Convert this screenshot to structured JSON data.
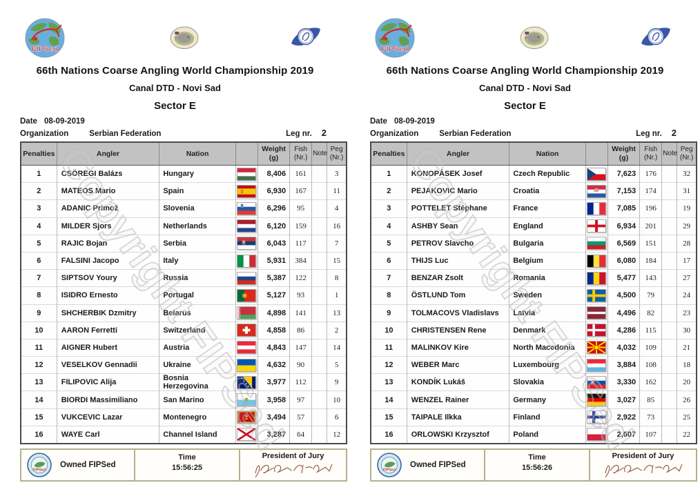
{
  "watermark": "Copyright FIPSed",
  "colors": {
    "header_bg": "#c2c2c2",
    "footer_border": "#b3b08c",
    "watermark_gray": "#b9b9b9",
    "signature_ink": "#9c5f4a",
    "fipsed_red": "#cc2222"
  },
  "logos": {
    "fipsed_label": "FIPSed"
  },
  "pages": [
    {
      "title": "66th Nations Coarse Angling World Championship 2019",
      "subtitle": "Canal DTD - Novi Sad",
      "sector": "Sector E",
      "date_label": "Date",
      "date_value": "08-09-2019",
      "org_label": "Organization",
      "org_value": "Serbian Federation",
      "leg_label": "Leg nr.",
      "leg_value": "2",
      "columns": [
        {
          "label": "Penalties",
          "sub": ""
        },
        {
          "label": "Angler",
          "sub": ""
        },
        {
          "label": "Nation",
          "sub": ""
        },
        {
          "label": "",
          "sub": ""
        },
        {
          "label": "Weight",
          "sub": "(g)"
        },
        {
          "label": "Fish",
          "sub": "(Nr.)"
        },
        {
          "label": "Note",
          "sub": ""
        },
        {
          "label": "Peg",
          "sub": "(Nr.)"
        }
      ],
      "rows": [
        {
          "rank": "1",
          "angler": "CSÖREGI Balázs",
          "nation": "Hungary",
          "flag": "hu",
          "weight": "8,406",
          "fish": "161",
          "note": "",
          "peg": "3"
        },
        {
          "rank": "2",
          "angler": "MATEOS Mario",
          "nation": "Spain",
          "flag": "es",
          "weight": "6,930",
          "fish": "167",
          "note": "",
          "peg": "11"
        },
        {
          "rank": "3",
          "angler": "ADANIC Primož",
          "nation": "Slovenia",
          "flag": "si",
          "weight": "6,296",
          "fish": "95",
          "note": "",
          "peg": "4"
        },
        {
          "rank": "4",
          "angler": "MILDER Sjors",
          "nation": "Netherlands",
          "flag": "nl",
          "weight": "6,120",
          "fish": "159",
          "note": "",
          "peg": "16"
        },
        {
          "rank": "5",
          "angler": "RAJIC Bojan",
          "nation": "Serbia",
          "flag": "rs",
          "weight": "6,043",
          "fish": "117",
          "note": "",
          "peg": "7"
        },
        {
          "rank": "6",
          "angler": "FALSINI Jacopo",
          "nation": "Italy",
          "flag": "it",
          "weight": "5,931",
          "fish": "384",
          "note": "",
          "peg": "15"
        },
        {
          "rank": "7",
          "angler": "SIPTSOV Youry",
          "nation": "Russia",
          "flag": "ru",
          "weight": "5,387",
          "fish": "122",
          "note": "",
          "peg": "8"
        },
        {
          "rank": "8",
          "angler": "ISIDRO Ernesto",
          "nation": "Portugal",
          "flag": "pt",
          "weight": "5,127",
          "fish": "93",
          "note": "",
          "peg": "1"
        },
        {
          "rank": "9",
          "angler": "SHCHERBIK Dzmitry",
          "nation": "Belarus",
          "flag": "by",
          "weight": "4,898",
          "fish": "141",
          "note": "",
          "peg": "13"
        },
        {
          "rank": "10",
          "angler": "AARON Ferretti",
          "nation": "Switzerland",
          "flag": "ch",
          "weight": "4,858",
          "fish": "86",
          "note": "",
          "peg": "2"
        },
        {
          "rank": "11",
          "angler": "AIGNER Hubert",
          "nation": "Austria",
          "flag": "at",
          "weight": "4,843",
          "fish": "147",
          "note": "",
          "peg": "14"
        },
        {
          "rank": "12",
          "angler": "VESELKOV Gennadii",
          "nation": "Ukraine",
          "flag": "ua",
          "weight": "4,632",
          "fish": "90",
          "note": "",
          "peg": "5"
        },
        {
          "rank": "13",
          "angler": "FILIPOVIC Alija",
          "nation": "Bosnia Herzegovina",
          "flag": "ba",
          "weight": "3,977",
          "fish": "112",
          "note": "",
          "peg": "9"
        },
        {
          "rank": "14",
          "angler": "BIORDI Massimiliano",
          "nation": "San Marino",
          "flag": "sm",
          "weight": "3,958",
          "fish": "97",
          "note": "",
          "peg": "10"
        },
        {
          "rank": "15",
          "angler": "VUKCEVIC Lazar",
          "nation": "Montenegro",
          "flag": "me",
          "weight": "3,494",
          "fish": "57",
          "note": "",
          "peg": "6"
        },
        {
          "rank": "16",
          "angler": "WAYE Carl",
          "nation": "Channel Island",
          "flag": "je",
          "weight": "3,287",
          "fish": "64",
          "note": "",
          "peg": "12"
        }
      ],
      "footer": {
        "owned_label": "Owned FIPSed",
        "time_label": "Time",
        "time_value": "15:56:25",
        "jury_label": "President of Jury"
      }
    },
    {
      "title": "66th Nations Coarse Angling World Championship 2019",
      "subtitle": "Canal DTD - Novi Sad",
      "sector": "Sector E",
      "date_label": "Date",
      "date_value": "08-09-2019",
      "org_label": "Organization",
      "org_value": "Serbian Federation",
      "leg_label": "Leg nr.",
      "leg_value": "2",
      "columns": [
        {
          "label": "Penalties",
          "sub": ""
        },
        {
          "label": "Angler",
          "sub": ""
        },
        {
          "label": "Nation",
          "sub": ""
        },
        {
          "label": "",
          "sub": ""
        },
        {
          "label": "Weight",
          "sub": "(g)"
        },
        {
          "label": "Fish",
          "sub": "(Nr.)"
        },
        {
          "label": "Note",
          "sub": ""
        },
        {
          "label": "Peg",
          "sub": "(Nr.)"
        }
      ],
      "rows": [
        {
          "rank": "1",
          "angler": "KONOPÁSEK Josef",
          "nation": "Czech Republic",
          "flag": "cz",
          "weight": "7,623",
          "fish": "176",
          "note": "",
          "peg": "32"
        },
        {
          "rank": "2",
          "angler": "PEJAKOVIC Mario",
          "nation": "Croatia",
          "flag": "hr",
          "weight": "7,153",
          "fish": "174",
          "note": "",
          "peg": "31"
        },
        {
          "rank": "3",
          "angler": "POTTELET Stéphane",
          "nation": "France",
          "flag": "fr",
          "weight": "7,085",
          "fish": "196",
          "note": "",
          "peg": "19"
        },
        {
          "rank": "4",
          "angler": "ASHBY Sean",
          "nation": "England",
          "flag": "en",
          "weight": "6,934",
          "fish": "201",
          "note": "",
          "peg": "29"
        },
        {
          "rank": "5",
          "angler": "PETROV Slavcho",
          "nation": "Bulgaria",
          "flag": "bg",
          "weight": "6,569",
          "fish": "151",
          "note": "",
          "peg": "28"
        },
        {
          "rank": "6",
          "angler": "THIJS Luc",
          "nation": "Belgium",
          "flag": "be",
          "weight": "6,080",
          "fish": "184",
          "note": "",
          "peg": "17"
        },
        {
          "rank": "7",
          "angler": "BENZAR Zsolt",
          "nation": "Romania",
          "flag": "ro",
          "weight": "5,477",
          "fish": "143",
          "note": "",
          "peg": "27"
        },
        {
          "rank": "8",
          "angler": "ÖSTLUND Tom",
          "nation": "Sweden",
          "flag": "se",
          "weight": "4,500",
          "fish": "79",
          "note": "",
          "peg": "24"
        },
        {
          "rank": "9",
          "angler": "TOLMACOVS Vladislavs",
          "nation": "Latvia",
          "flag": "lv",
          "weight": "4,496",
          "fish": "82",
          "note": "",
          "peg": "23"
        },
        {
          "rank": "10",
          "angler": "CHRISTENSEN Rene",
          "nation": "Denmark",
          "flag": "dk",
          "weight": "4,286",
          "fish": "115",
          "note": "",
          "peg": "30"
        },
        {
          "rank": "11",
          "angler": "MALINKOV Kire",
          "nation": "North Macedonia",
          "flag": "mk",
          "weight": "4,032",
          "fish": "109",
          "note": "",
          "peg": "21"
        },
        {
          "rank": "12",
          "angler": "WEBER Marc",
          "nation": "Luxembourg",
          "flag": "lu",
          "weight": "3,884",
          "fish": "108",
          "note": "",
          "peg": "18"
        },
        {
          "rank": "13",
          "angler": "KONDÍK Lukáš",
          "nation": "Slovakia",
          "flag": "sk",
          "weight": "3,330",
          "fish": "162",
          "note": "",
          "peg": "20"
        },
        {
          "rank": "14",
          "angler": "WENZEL Rainer",
          "nation": "Germany",
          "flag": "de",
          "weight": "3,027",
          "fish": "85",
          "note": "",
          "peg": "26"
        },
        {
          "rank": "15",
          "angler": "TAIPALE Ilkka",
          "nation": "Finland",
          "flag": "fi",
          "weight": "2,922",
          "fish": "73",
          "note": "",
          "peg": "25"
        },
        {
          "rank": "16",
          "angler": "ORLOWSKI Krzysztof",
          "nation": "Poland",
          "flag": "pl",
          "weight": "2,607",
          "fish": "107",
          "note": "",
          "peg": "22"
        }
      ],
      "footer": {
        "owned_label": "Owned FIPSed",
        "time_label": "Time",
        "time_value": "15:56:26",
        "jury_label": "President of Jury"
      }
    }
  ]
}
